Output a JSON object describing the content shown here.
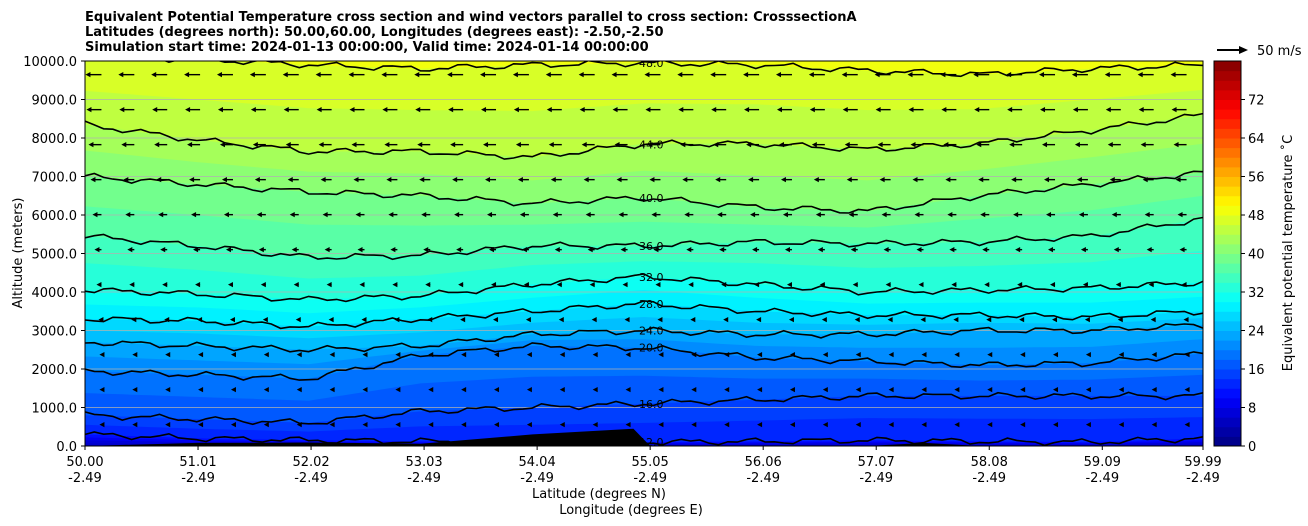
{
  "chart_data": {
    "type": "heatmap",
    "title_lines": [
      "Equivalent Potential Temperature cross section and wind vectors parallel to cross section: CrosssectionA",
      "Latitudes (degrees north): 50.00,60.00, Longitudes (degrees east): -2.50,-2.50",
      "Simulation start time: 2024-01-13 00:00:00, Valid time: 2024-01-14 00:00:00"
    ],
    "xlabel": "Latitude (degrees N)",
    "xlabel2": "Longitude (degrees E)",
    "ylabel": "Altitude (meters)",
    "x_range": [
      50.0,
      59.99
    ],
    "ylim": [
      0,
      10000
    ],
    "x_tick_positions": [
      50.0,
      51.01,
      52.02,
      53.03,
      54.04,
      55.05,
      56.06,
      57.07,
      58.08,
      59.09,
      59.99
    ],
    "x_tick_labels_lat": [
      "50.00",
      "51.01",
      "52.02",
      "53.03",
      "54.04",
      "55.05",
      "56.06",
      "57.07",
      "58.08",
      "59.09",
      "59.99"
    ],
    "x_tick_labels_lon": [
      "-2.49",
      "-2.49",
      "-2.49",
      "-2.49",
      "-2.49",
      "-2.49",
      "-2.49",
      "-2.49",
      "-2.49",
      "-2.49",
      "-2.49"
    ],
    "y_ticks": [
      0,
      1000,
      2000,
      3000,
      4000,
      5000,
      6000,
      7000,
      8000,
      9000,
      10000
    ],
    "y_tick_labels": [
      "0.0",
      "1000.0",
      "2000.0",
      "3000.0",
      "4000.0",
      "5000.0",
      "6000.0",
      "7000.0",
      "8000.0",
      "9000.0",
      "10000.0"
    ],
    "grid": "horizontal",
    "colorbar": {
      "label": "Equivalent potential temperature $^\\circ$C",
      "label_display": "Equivalent potential temperature ˚C",
      "min": 0,
      "max": 80,
      "step": 2,
      "ticks": [
        0,
        8,
        16,
        24,
        32,
        40,
        48,
        56,
        64,
        72
      ],
      "tick_labels": [
        "0",
        "8",
        "16",
        "24",
        "32",
        "40",
        "48",
        "56",
        "64",
        "72"
      ]
    },
    "quiver_key": {
      "label": "50 m/s",
      "speed": 50
    },
    "contour_levels": [
      {
        "value": 12,
        "label": "12.0",
        "heights": [
          300,
          200,
          150,
          120,
          100,
          100,
          120,
          150,
          120,
          100,
          200
        ]
      },
      {
        "value": 16,
        "label": "16.0",
        "heights": [
          800,
          700,
          600,
          900,
          1000,
          1100,
          1200,
          1300,
          1300,
          1300,
          1300
        ]
      },
      {
        "value": 20,
        "label": "20.0",
        "heights": [
          1950,
          1850,
          1750,
          2350,
          2600,
          2550,
          2300,
          2200,
          2100,
          2150,
          2400
        ]
      },
      {
        "value": 24,
        "label": "24.0",
        "heights": [
          2700,
          2600,
          2500,
          2600,
          2900,
          3000,
          2900,
          2900,
          3000,
          3000,
          3150
        ]
      },
      {
        "value": 28,
        "label": "28.0",
        "heights": [
          3300,
          3250,
          3100,
          3300,
          3500,
          3700,
          3500,
          3400,
          3400,
          3350,
          3500
        ]
      },
      {
        "value": 32,
        "label": "32.0",
        "heights": [
          4050,
          3950,
          3800,
          3900,
          4200,
          4400,
          4200,
          4000,
          4050,
          4100,
          4250
        ]
      },
      {
        "value": 36,
        "label": "36.0",
        "heights": [
          5450,
          5200,
          4900,
          4950,
          5200,
          5200,
          5300,
          5250,
          5300,
          5450,
          5900
        ]
      },
      {
        "value": 40,
        "label": "40.0",
        "heights": [
          7000,
          6800,
          6600,
          6500,
          6300,
          6450,
          6200,
          6100,
          6500,
          6800,
          7100
        ]
      },
      {
        "value": 44,
        "label": "44.0",
        "heights": [
          8350,
          7950,
          7650,
          7650,
          7500,
          7850,
          7850,
          7700,
          7850,
          8200,
          8600
        ]
      },
      {
        "value": 48,
        "label": "48.0",
        "heights": [
          10100,
          10050,
          9900,
          9800,
          9900,
          9950,
          9900,
          9750,
          9650,
          9800,
          9900
        ]
      }
    ],
    "surface_terrain": {
      "x": [
        50.0,
        51.0,
        52.0,
        53.0,
        54.0,
        54.9,
        55.05,
        56.06,
        57.0,
        57.5,
        58.0,
        59.99
      ],
      "heights": [
        0,
        80,
        90,
        60,
        300,
        450,
        0,
        0,
        0,
        80,
        0,
        0
      ]
    },
    "wind_field": {
      "columns": 34,
      "rows": 11,
      "description_units": "m/s, direction along section (negative = southward)",
      "mean_u_by_level": [
        -1,
        -1,
        -1,
        -2,
        -4,
        -6,
        -8,
        -10,
        -12,
        -14,
        -15
      ]
    }
  }
}
